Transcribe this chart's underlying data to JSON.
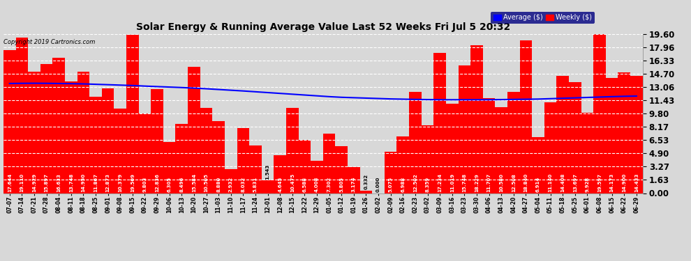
{
  "title": "Solar Energy & Running Average Value Last 52 Weeks Fri Jul 5 20:32",
  "copyright": "Copyright 2019 Cartronics.com",
  "bar_color": "#FF0000",
  "average_line_color": "#0000FF",
  "background_color": "#D8D8D8",
  "plot_bg_color": "#D8D8D8",
  "ylim_max": 19.6,
  "yticks": [
    0.0,
    1.63,
    3.27,
    4.9,
    6.53,
    8.17,
    9.8,
    11.43,
    13.06,
    14.7,
    16.33,
    17.96,
    19.6
  ],
  "categories": [
    "07-07",
    "07-14",
    "07-21",
    "07-28",
    "08-04",
    "08-11",
    "08-18",
    "08-25",
    "09-01",
    "09-08",
    "09-15",
    "09-22",
    "09-29",
    "10-06",
    "10-13",
    "10-20",
    "10-27",
    "11-03",
    "11-10",
    "11-17",
    "11-24",
    "12-01",
    "12-08",
    "12-15",
    "12-22",
    "12-29",
    "01-05",
    "01-12",
    "01-19",
    "01-26",
    "02-02",
    "02-09",
    "02-16",
    "02-23",
    "03-02",
    "03-09",
    "03-16",
    "03-23",
    "03-30",
    "04-06",
    "04-13",
    "04-20",
    "04-27",
    "05-04",
    "05-11",
    "05-18",
    "05-25",
    "06-01",
    "06-08",
    "06-15",
    "06-22",
    "06-29"
  ],
  "values": [
    17.644,
    19.11,
    14.929,
    15.897,
    16.633,
    13.748,
    14.95,
    11.867,
    12.873,
    10.379,
    19.509,
    9.803,
    12.836,
    6.305,
    8.496,
    15.584,
    10.505,
    8.88,
    2.932,
    8.032,
    5.831,
    1.543,
    4.645,
    10.475,
    6.588,
    4.008,
    7.302,
    5.805,
    3.174,
    0.332,
    0.0,
    5.075,
    6.988,
    12.502,
    8.359,
    17.234,
    11.019,
    15.748,
    18.229,
    11.707,
    10.58,
    12.508,
    18.84,
    6.914,
    11.14,
    14.408,
    13.697,
    9.928,
    19.597,
    14.173,
    14.9,
    14.433
  ],
  "averages": [
    13.5,
    13.52,
    13.53,
    13.52,
    13.5,
    13.48,
    13.45,
    13.4,
    13.35,
    13.3,
    13.25,
    13.18,
    13.12,
    13.06,
    13.0,
    12.93,
    12.85,
    12.76,
    12.67,
    12.58,
    12.48,
    12.38,
    12.28,
    12.18,
    12.08,
    11.98,
    11.88,
    11.8,
    11.75,
    11.7,
    11.65,
    11.6,
    11.57,
    11.54,
    11.52,
    11.5,
    11.5,
    11.5,
    11.5,
    11.5,
    11.52,
    11.54,
    11.56,
    11.58,
    11.63,
    11.68,
    11.73,
    11.78,
    11.83,
    11.88,
    11.92,
    11.95
  ],
  "legend_bg_color": "#000080",
  "legend_text_color": "#FFFFFF",
  "legend_avg_color": "#0000FF",
  "legend_weekly_color": "#FF0000",
  "label_fontsize": 5.0,
  "xlabel_fontsize": 5.5,
  "ylabel_fontsize": 8.5,
  "title_fontsize": 10
}
